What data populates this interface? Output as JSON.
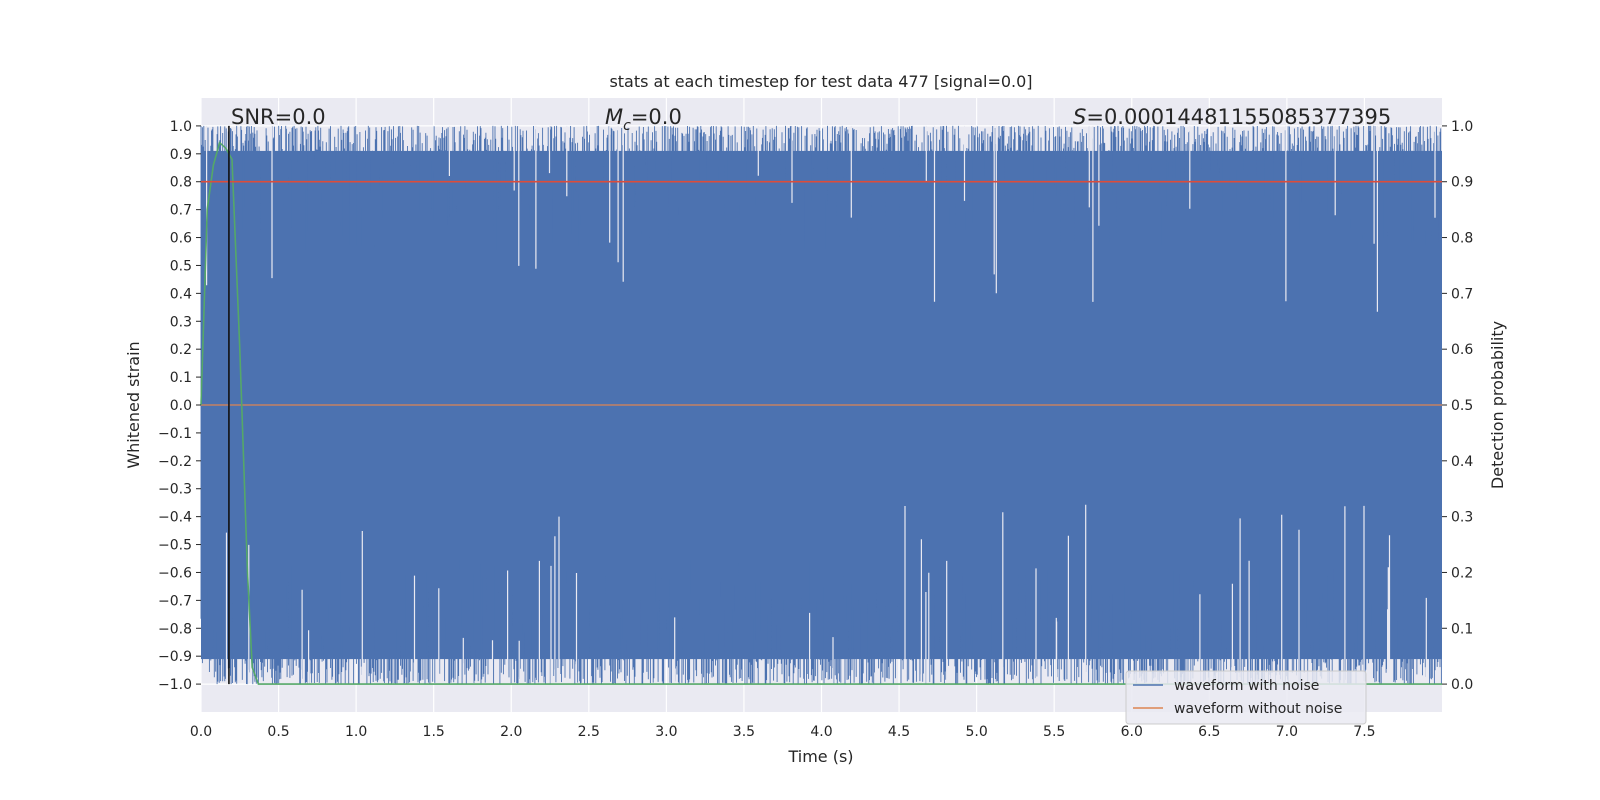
{
  "chart_data": {
    "type": "line",
    "title": "stats at each timestep for test data 477 [signal=0.0]",
    "xlabel": "Time (s)",
    "ylabel": "Whitened strain",
    "ylabel_right": "Detection probability",
    "xlim": [
      0.0,
      8.0
    ],
    "ylim": [
      -1.1,
      1.1
    ],
    "ylim_right": [
      -0.05,
      1.05
    ],
    "x_ticks": [
      "0.0",
      "0.5",
      "1.0",
      "1.5",
      "2.0",
      "2.5",
      "3.0",
      "3.5",
      "4.0",
      "4.5",
      "5.0",
      "5.5",
      "6.0",
      "6.5",
      "7.0",
      "7.5"
    ],
    "y_ticks": [
      "1.0",
      "0.9",
      "0.8",
      "0.7",
      "0.6",
      "0.5",
      "0.4",
      "0.3",
      "0.2",
      "0.1",
      "0.0",
      "−0.1",
      "−0.2",
      "−0.3",
      "−0.4",
      "−0.5",
      "−0.6",
      "−0.7",
      "−0.8",
      "−0.9",
      "−1.0"
    ],
    "y_ticks_right": [
      "1.0",
      "0.9",
      "0.8",
      "0.7",
      "0.6",
      "0.5",
      "0.4",
      "0.3",
      "0.2",
      "0.1",
      "0.0"
    ],
    "grid": true,
    "annotations": {
      "snr": "SNR=0.0",
      "mc_symbol": "M",
      "mc_sub": "c",
      "mc_value": "=0.0",
      "s_symbol": "S",
      "s_value": "=0.00014481155085377395"
    },
    "legend": {
      "placement": "lower-right",
      "entries": [
        {
          "label": "waveform with noise",
          "color": "#4c72b0"
        },
        {
          "label": "waveform without noise",
          "color": "#dd8452"
        }
      ]
    },
    "series": [
      {
        "name": "waveform with noise",
        "color": "#4c72b0",
        "description": "dense noise filling -1.0 to 1.0 over 0 to 8 s",
        "y_min": -1.0,
        "y_max": 1.0
      },
      {
        "name": "waveform without noise",
        "color": "#dd8452",
        "x": [
          0.0,
          8.0
        ],
        "y": [
          0.0,
          0.0
        ]
      },
      {
        "color": "#55a868",
        "axis": "right",
        "x": [
          0.0,
          0.04,
          0.08,
          0.12,
          0.16,
          0.2,
          0.25,
          0.3,
          0.33,
          0.37,
          8.0
        ],
        "y": [
          0.5,
          0.85,
          0.93,
          0.97,
          0.96,
          0.94,
          0.6,
          0.2,
          0.03,
          0.0,
          0.0
        ]
      },
      {
        "color": "#dd4c3a",
        "axis": "right",
        "x": [
          0.0,
          8.0
        ],
        "y": [
          0.9,
          0.9
        ]
      }
    ],
    "vline_x": 0.18
  }
}
